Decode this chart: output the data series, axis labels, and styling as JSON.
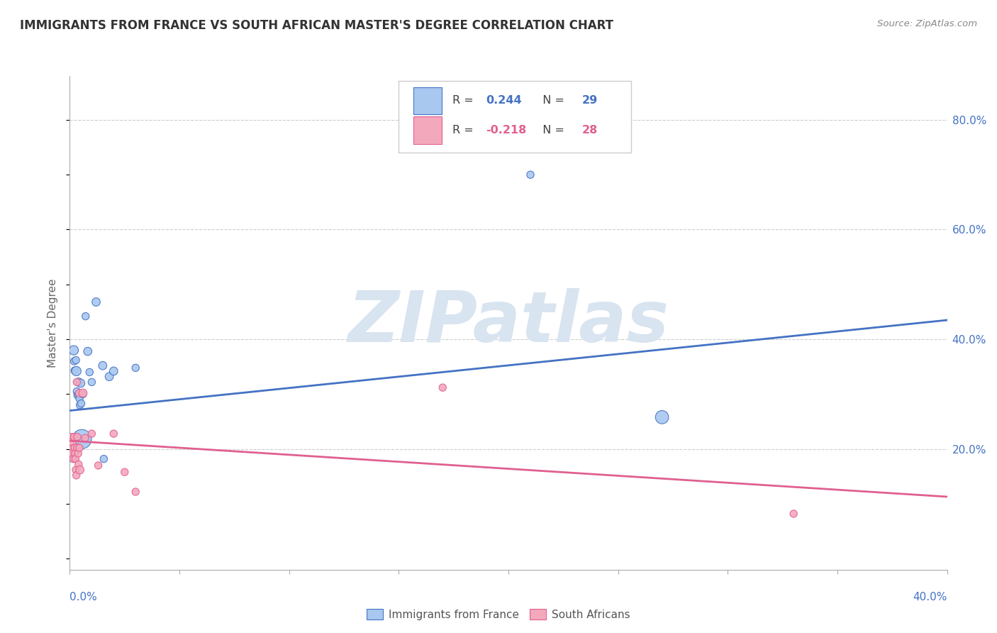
{
  "title": "IMMIGRANTS FROM FRANCE VS SOUTH AFRICAN MASTER'S DEGREE CORRELATION CHART",
  "source": "Source: ZipAtlas.com",
  "ylabel": "Master's Degree",
  "ytick_values": [
    0.2,
    0.4,
    0.6,
    0.8
  ],
  "xlim": [
    0.0,
    0.4
  ],
  "ylim": [
    -0.02,
    0.88
  ],
  "blue_color": "#A8C8F0",
  "pink_color": "#F4A8BC",
  "line_blue": "#4472C4",
  "line_pink": "#E06090",
  "text_blue": "#4472C4",
  "text_dark": "#404040",
  "grid_color": "#CCCCCC",
  "spine_color": "#AAAAAA",
  "blue_scatter": [
    [
      0.0008,
      0.2
    ],
    [
      0.0012,
      0.183
    ],
    [
      0.0018,
      0.38
    ],
    [
      0.002,
      0.36
    ],
    [
      0.0022,
      0.343
    ],
    [
      0.0028,
      0.362
    ],
    [
      0.003,
      0.342
    ],
    [
      0.0032,
      0.305
    ],
    [
      0.0035,
      0.298
    ],
    [
      0.004,
      0.322
    ],
    [
      0.0042,
      0.3
    ],
    [
      0.0044,
      0.292
    ],
    [
      0.0046,
      0.28
    ],
    [
      0.005,
      0.32
    ],
    [
      0.0052,
      0.283
    ],
    [
      0.0055,
      0.218
    ],
    [
      0.006,
      0.3
    ],
    [
      0.0072,
      0.442
    ],
    [
      0.0082,
      0.378
    ],
    [
      0.009,
      0.34
    ],
    [
      0.01,
      0.322
    ],
    [
      0.012,
      0.468
    ],
    [
      0.015,
      0.352
    ],
    [
      0.0155,
      0.182
    ],
    [
      0.018,
      0.332
    ],
    [
      0.02,
      0.342
    ],
    [
      0.03,
      0.348
    ],
    [
      0.21,
      0.7
    ],
    [
      0.27,
      0.258
    ]
  ],
  "blue_sizes": [
    70,
    55,
    90,
    55,
    55,
    55,
    90,
    55,
    55,
    70,
    70,
    55,
    55,
    70,
    55,
    380,
    55,
    55,
    70,
    55,
    55,
    70,
    70,
    55,
    70,
    70,
    55,
    55,
    180
  ],
  "pink_scatter": [
    [
      0.0008,
      0.222
    ],
    [
      0.001,
      0.212
    ],
    [
      0.0012,
      0.2
    ],
    [
      0.0014,
      0.192
    ],
    [
      0.0016,
      0.182
    ],
    [
      0.002,
      0.222
    ],
    [
      0.0022,
      0.202
    ],
    [
      0.0024,
      0.192
    ],
    [
      0.0026,
      0.182
    ],
    [
      0.0028,
      0.162
    ],
    [
      0.003,
      0.152
    ],
    [
      0.0032,
      0.322
    ],
    [
      0.0034,
      0.222
    ],
    [
      0.0036,
      0.202
    ],
    [
      0.0038,
      0.192
    ],
    [
      0.004,
      0.172
    ],
    [
      0.0042,
      0.302
    ],
    [
      0.0044,
      0.202
    ],
    [
      0.0046,
      0.162
    ],
    [
      0.006,
      0.302
    ],
    [
      0.007,
      0.22
    ],
    [
      0.01,
      0.228
    ],
    [
      0.013,
      0.17
    ],
    [
      0.02,
      0.228
    ],
    [
      0.025,
      0.158
    ],
    [
      0.03,
      0.122
    ],
    [
      0.17,
      0.312
    ],
    [
      0.33,
      0.082
    ]
  ],
  "pink_sizes": [
    55,
    70,
    70,
    70,
    55,
    55,
    55,
    55,
    55,
    55,
    55,
    55,
    55,
    70,
    55,
    55,
    55,
    55,
    70,
    70,
    55,
    55,
    55,
    55,
    55,
    55,
    55,
    55
  ],
  "blue_line_x": [
    0.0,
    0.4
  ],
  "blue_line_y": [
    0.27,
    0.435
  ],
  "pink_line_x": [
    0.0,
    0.4
  ],
  "pink_line_y": [
    0.215,
    0.113
  ],
  "watermark_text": "ZIPatlas",
  "watermark_color": "#D8E4F0",
  "legend_R1": "0.244",
  "legend_N1": "29",
  "legend_R2": "-0.218",
  "legend_N2": "28",
  "bottom_label1": "Immigrants from France",
  "bottom_label2": "South Africans"
}
